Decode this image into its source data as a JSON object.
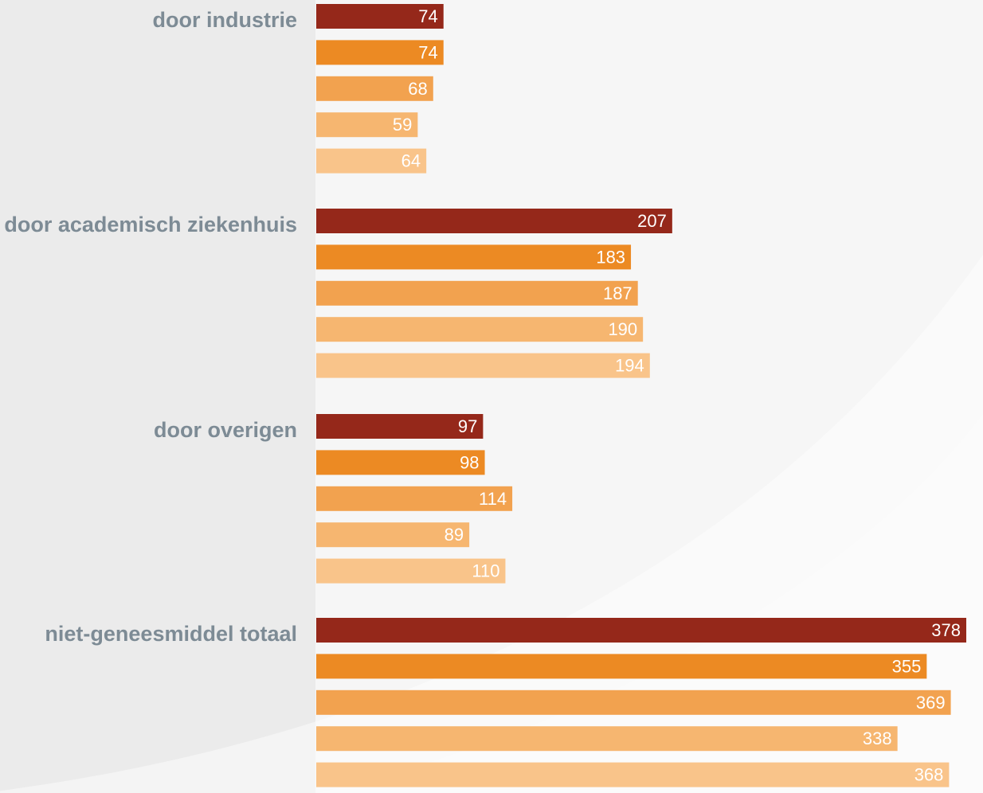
{
  "chart_data": {
    "type": "bar",
    "orientation": "horizontal",
    "categories": [
      "door industrie",
      "door academisch ziekenhuis",
      "door overigen",
      "niet-geneesmiddel totaal"
    ],
    "series": [
      {
        "color": "#95281a",
        "values": [
          74,
          207,
          97,
          378
        ]
      },
      {
        "color": "#ec8a23",
        "values": [
          74,
          183,
          98,
          355
        ]
      },
      {
        "color": "#f2a24f",
        "values": [
          68,
          187,
          114,
          369
        ]
      },
      {
        "color": "#f6b670",
        "values": [
          59,
          190,
          89,
          338
        ]
      },
      {
        "color": "#f9c48a",
        "values": [
          64,
          194,
          110,
          368
        ]
      }
    ],
    "xlim": [
      0,
      378
    ],
    "grid": false,
    "legend": false
  }
}
